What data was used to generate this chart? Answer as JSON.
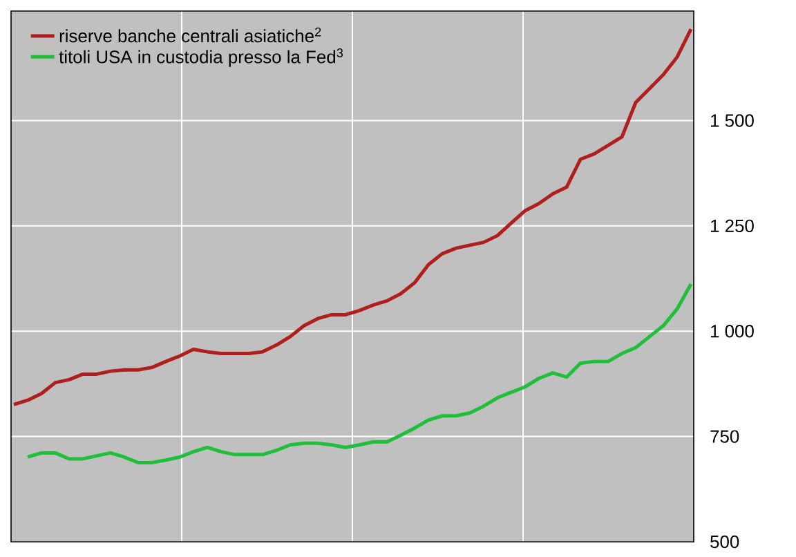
{
  "chart_data": {
    "type": "line",
    "categories": [
      null,
      null,
      null,
      null,
      null,
      null,
      null,
      null,
      null,
      null,
      null,
      null,
      null,
      null,
      null,
      null,
      null,
      null,
      null,
      null,
      null,
      null,
      null,
      null,
      null,
      null,
      null,
      null,
      null,
      null,
      null,
      null,
      null,
      null,
      null,
      null,
      null,
      null,
      null,
      null,
      null,
      null,
      null,
      null,
      null,
      null,
      null,
      null,
      null,
      null
    ],
    "series": [
      {
        "name": "riserve banche centrali asiatiche$^{2}$",
        "color": "#b01e1e",
        "values": [
          826,
          836,
          852,
          878,
          885,
          898,
          898,
          905,
          908,
          908,
          914,
          928,
          941,
          957,
          951,
          947,
          947,
          947,
          951,
          967,
          987,
          1013,
          1030,
          1039,
          1039,
          1049,
          1062,
          1072,
          1089,
          1115,
          1158,
          1184,
          1197,
          1204,
          1211,
          1227,
          1257,
          1286,
          1303,
          1326,
          1342,
          1408,
          1421,
          1441,
          1461,
          1543,
          1576,
          1609,
          1651,
          1717
        ]
      },
      {
        "name": "titoli USA in custodia presso la Fed$^{3}$",
        "color": "#1fbf3a",
        "values": [
          null,
          701,
          711,
          711,
          697,
          697,
          704,
          711,
          701,
          688,
          688,
          694,
          701,
          714,
          724,
          714,
          707,
          707,
          707,
          717,
          730,
          734,
          734,
          730,
          724,
          730,
          737,
          737,
          753,
          770,
          789,
          799,
          799,
          806,
          822,
          842,
          855,
          868,
          888,
          901,
          891,
          924,
          928,
          928,
          947,
          961,
          987,
          1013,
          1053,
          1112
        ]
      }
    ],
    "ylim": [
      500,
      1760
    ],
    "yticks": [
      500,
      750,
      {
        "value": 1000,
        "label": "1 000"
      },
      {
        "value": 1250,
        "label": "1 250"
      },
      {
        "value": 1500,
        "label": "1 500"
      }
    ],
    "grid": true,
    "legend": "top left",
    "marker": "none",
    "line_style": "solid"
  }
}
